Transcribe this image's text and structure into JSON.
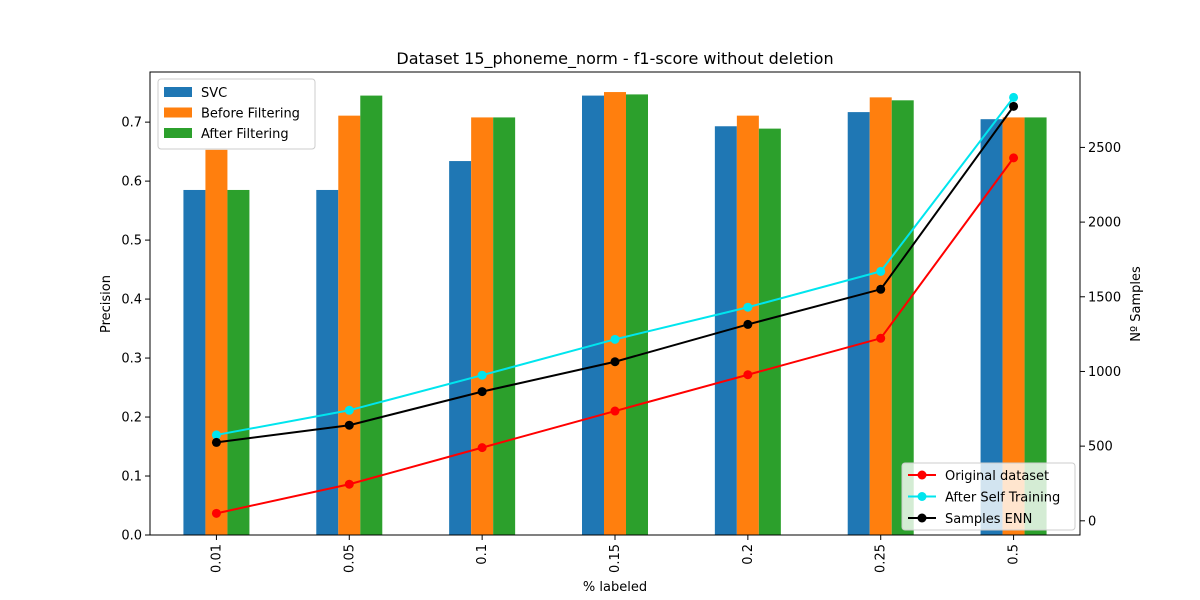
{
  "chart_data": {
    "type": "bar",
    "title": "Dataset 15_phoneme_norm - f1-score without deletion",
    "xlabel": "% labeled",
    "ylabel": "Precision",
    "y2label": "Nº Samples",
    "categories": [
      "0.01",
      "0.05",
      "0.1",
      "0.15",
      "0.2",
      "0.25",
      "0.5"
    ],
    "ylim": [
      0,
      0.785
    ],
    "y2lim": [
      -95,
      3005
    ],
    "yticks": [
      "0.0",
      "0.1",
      "0.2",
      "0.3",
      "0.4",
      "0.5",
      "0.6",
      "0.7"
    ],
    "y2ticks": [
      "0",
      "500",
      "1000",
      "1500",
      "2000",
      "2500"
    ],
    "grid": false,
    "series": [
      {
        "name": "SVC",
        "kind": "bar",
        "axis": "left",
        "color": "#1f77b4",
        "values": [
          0.585,
          0.585,
          0.634,
          0.745,
          0.693,
          0.717,
          0.705
        ]
      },
      {
        "name": "Before Filtering",
        "kind": "bar",
        "axis": "left",
        "color": "#ff7f0e",
        "values": [
          0.653,
          0.711,
          0.708,
          0.751,
          0.711,
          0.742,
          0.708
        ]
      },
      {
        "name": "After Filtering",
        "kind": "bar",
        "axis": "left",
        "color": "#2ca02c",
        "values": [
          0.585,
          0.745,
          0.708,
          0.747,
          0.689,
          0.737,
          0.708
        ]
      },
      {
        "name": "Original dataset",
        "kind": "line",
        "axis": "right",
        "color": "#ff0000",
        "values": [
          50,
          245,
          490,
          735,
          978,
          1222,
          2430
        ]
      },
      {
        "name": "After Self Training",
        "kind": "line",
        "axis": "right",
        "color": "#00e5ee",
        "values": [
          575,
          740,
          975,
          1215,
          1430,
          1670,
          2835
        ]
      },
      {
        "name": "Samples ENN",
        "kind": "line",
        "axis": "right",
        "color": "#000000",
        "values": [
          525,
          640,
          865,
          1065,
          1315,
          1550,
          2775
        ]
      }
    ],
    "legend_bars_position": "upper-left",
    "legend_lines_position": "lower-right"
  }
}
